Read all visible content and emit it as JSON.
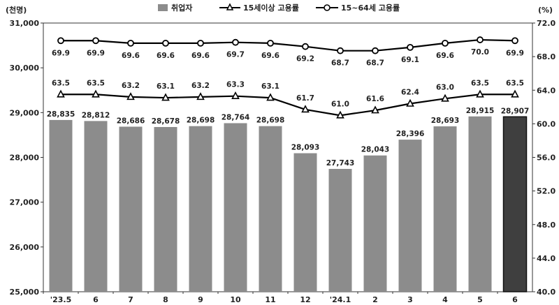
{
  "chart_data": {
    "type": "bar",
    "categories": [
      "'23.5",
      "6",
      "7",
      "8",
      "9",
      "10",
      "11",
      "12",
      "'24.1",
      "2",
      "3",
      "4",
      "5",
      "6"
    ],
    "left_unit": "(천명)",
    "right_unit": "(%)",
    "y_left": {
      "min": 25000,
      "max": 31000,
      "ticks": [
        "25,000",
        "26,000",
        "27,000",
        "28,000",
        "29,000",
        "30,000",
        "31,000"
      ]
    },
    "y_right": {
      "min": 40.0,
      "max": 72.0,
      "ticks": [
        "40.0",
        "44.0",
        "48.0",
        "52.0",
        "56.0",
        "60.0",
        "64.0",
        "68.0",
        "72.0"
      ]
    },
    "legend_position": "top",
    "series": [
      {
        "name": "취업자",
        "type": "bar",
        "axis": "left",
        "color": "#8c8c8c",
        "highlight_color": "#3f3f3f",
        "values": [
          28835,
          28812,
          28686,
          28678,
          28698,
          28764,
          28698,
          28093,
          27743,
          28043,
          28396,
          28693,
          28915,
          28907
        ],
        "labels": [
          "28,835",
          "28,812",
          "28,686",
          "28,678",
          "28,698",
          "28,764",
          "28,698",
          "28,093",
          "27,743",
          "28,043",
          "28,396",
          "28,693",
          "28,915",
          "28,907"
        ]
      },
      {
        "name": "15세이상 고용률",
        "type": "line",
        "axis": "right",
        "marker": "triangle",
        "values": [
          63.5,
          63.5,
          63.2,
          63.1,
          63.2,
          63.3,
          63.1,
          61.7,
          61.0,
          61.6,
          62.4,
          63.0,
          63.5,
          63.5
        ],
        "labels": [
          "63.5",
          "63.5",
          "63.2",
          "63.1",
          "63.2",
          "63.3",
          "63.1",
          "61.7",
          "61.0",
          "61.6",
          "62.4",
          "63.0",
          "63.5",
          "63.5"
        ]
      },
      {
        "name": "15~64세 고용률",
        "type": "line",
        "axis": "right",
        "marker": "circle",
        "values": [
          69.9,
          69.9,
          69.6,
          69.6,
          69.6,
          69.7,
          69.6,
          69.2,
          68.7,
          68.7,
          69.1,
          69.6,
          70.0,
          69.9
        ],
        "labels": [
          "69.9",
          "69.9",
          "69.6",
          "69.6",
          "69.6",
          "69.7",
          "69.6",
          "69.2",
          "68.7",
          "68.7",
          "69.1",
          "69.6",
          "70.0",
          "69.9"
        ]
      }
    ]
  }
}
